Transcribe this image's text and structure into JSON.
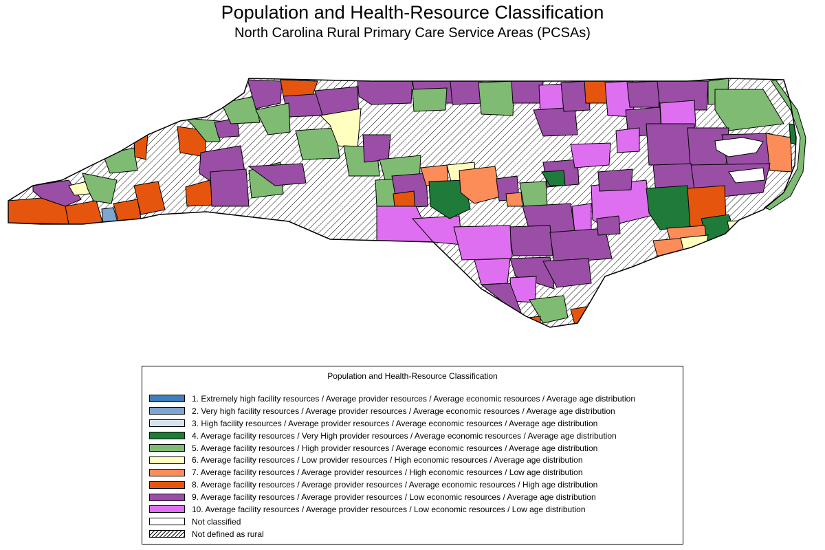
{
  "title": "Population and Health-Resource Classification",
  "subtitle": "North Carolina Rural Primary Care Service Areas (PCSAs)",
  "legend": {
    "title": "Population and Health-Resource Classification",
    "items": [
      {
        "label": "1. Extremely high facility resources / Average provider resources / Average economic resources / Average age distribution",
        "color": "#3e7fbf"
      },
      {
        "label": "2. Very high facility resources / Average provider resources / Average economic resources / Average age distribution",
        "color": "#7ea6cf"
      },
      {
        "label": "3. High facility resources / Average provider resources / Average economic resources / Average age distribution",
        "color": "#d6e3ef"
      },
      {
        "label": "4. Average facility resources / Very High provider resources / Average economic resources / Average age distribution",
        "color": "#1e7b3a"
      },
      {
        "label": "5. Average facility resources / High provider resources / Average economic resources / Average age distribution",
        "color": "#7fbb73"
      },
      {
        "label": "6. Average facility resources / Low provider resources / High economic resources / Average age distribution",
        "color": "#ffffc0"
      },
      {
        "label": "7. Average facility resources / Average provider resources / High economic resources / Low age distribution",
        "color": "#fc8d59"
      },
      {
        "label": "8. Average facility resources / Average provider resources / Average economic resources / High age distribution",
        "color": "#e6550d"
      },
      {
        "label": "9. Average facility resources / Average provider resources / Low economic resources / Average age distribution",
        "color": "#9a4ea6"
      },
      {
        "label": "10. Average facility resources / Average provider resources / Low economic resources / Low age distribution",
        "color": "#de6ff0"
      },
      {
        "label": "Not classified",
        "color": "#ffffff"
      },
      {
        "label": "Not defined as rural",
        "color": "hatch"
      }
    ]
  }
}
